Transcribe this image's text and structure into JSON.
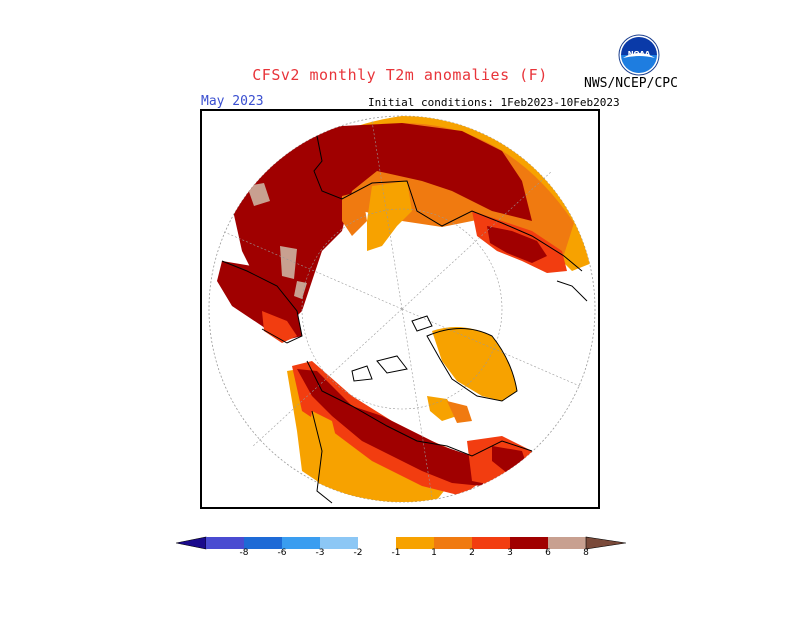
{
  "header": {
    "title": "CFSv2 monthly T2m anomalies (F)",
    "month": "May 2023",
    "initial_conditions": "Initial conditions: 1Feb2023-10Feb2023",
    "agency": "NWS/NCEP/CPC",
    "logo_icon": "noaa-logo-icon"
  },
  "legend": {
    "ticks": [
      "-8",
      "-6",
      "-3",
      "-2",
      "-1",
      "1",
      "2",
      "3",
      "6",
      "8"
    ],
    "colors": [
      "#1a0a8c",
      "#4a4bd1",
      "#1e6ad6",
      "#3a9df0",
      "#8cc7f5",
      "#ffffff",
      "#f7a200",
      "#f07a10",
      "#f23d10",
      "#a00000",
      "#c8a090",
      "#7a4a3a"
    ]
  },
  "map": {
    "colors": {
      "a1": "#f7a200",
      "a2": "#f07a10",
      "a3": "#f23d10",
      "a6": "#a00000",
      "a8": "#c8a090"
    }
  }
}
